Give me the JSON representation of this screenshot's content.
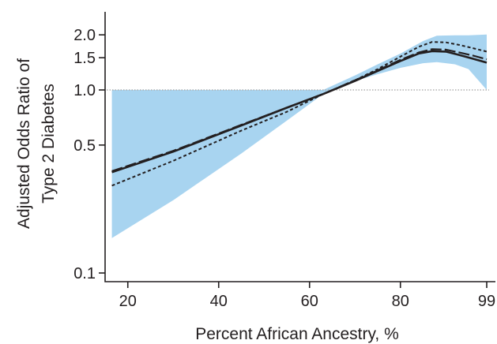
{
  "colors": {
    "ci_band": "#a8d4f0",
    "line": "#231f20",
    "reference": "#b0b0b0",
    "background": "#ffffff"
  },
  "chart_data": {
    "type": "line",
    "xlabel": "Percent African Ancestry, %",
    "ylabel": [
      "Adjusted Odds Ratio of",
      "Type 2 Diabetes"
    ],
    "xlim": [
      15,
      99
    ],
    "ylim": [
      0.09,
      3.0
    ],
    "yscale": "log",
    "xticks": [
      20,
      40,
      60,
      80,
      99
    ],
    "xtick_labels": [
      "20",
      "40",
      "60",
      "80",
      "99"
    ],
    "yticks": [
      0.1,
      0.5,
      1.0,
      1.5,
      2.0
    ],
    "ytick_labels": [
      "0.1",
      "0.5",
      "1.0",
      "1.5",
      "2.0"
    ],
    "reference_line": {
      "y": 1.0,
      "style": "dotted"
    },
    "grid": false,
    "legend": "none",
    "confidence_band": {
      "x": [
        16.5,
        30,
        45,
        55,
        63,
        70,
        75,
        80,
        85,
        88,
        92,
        95,
        99
      ],
      "lower": [
        0.155,
        0.25,
        0.45,
        0.68,
        0.95,
        1.12,
        1.22,
        1.32,
        1.4,
        1.42,
        1.38,
        1.3,
        1.0
      ],
      "upper": [
        1.0,
        1.0,
        1.0,
        1.0,
        1.0,
        1.2,
        1.38,
        1.58,
        1.85,
        1.98,
        1.99,
        1.99,
        2.01
      ]
    },
    "series": [
      {
        "style": "solid",
        "x": [
          16.5,
          30,
          45,
          55,
          63,
          70,
          75,
          80,
          84,
          87,
          90,
          93,
          96,
          99
        ],
        "y": [
          0.355,
          0.46,
          0.64,
          0.8,
          0.95,
          1.12,
          1.27,
          1.44,
          1.58,
          1.63,
          1.62,
          1.55,
          1.48,
          1.41
        ]
      },
      {
        "style": "dashed",
        "x": [
          16.5,
          30,
          45,
          55,
          63,
          70,
          75,
          80,
          84,
          87,
          90,
          93,
          96,
          99
        ],
        "y": [
          0.36,
          0.465,
          0.645,
          0.8,
          0.95,
          1.13,
          1.28,
          1.46,
          1.6,
          1.67,
          1.66,
          1.6,
          1.54,
          1.47
        ]
      },
      {
        "style": "dotted",
        "x": [
          16.5,
          30,
          45,
          55,
          63,
          70,
          75,
          80,
          84,
          87,
          90,
          93,
          96,
          99
        ],
        "y": [
          0.3,
          0.41,
          0.6,
          0.76,
          0.95,
          1.13,
          1.3,
          1.52,
          1.72,
          1.83,
          1.82,
          1.76,
          1.69,
          1.62
        ]
      }
    ]
  }
}
